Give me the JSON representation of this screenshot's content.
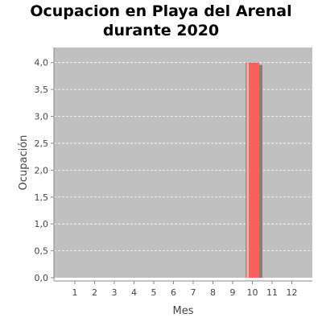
{
  "chart_data": {
    "type": "bar",
    "title_lines": [
      "Ocupacion en  Playa del Arenal",
      "durante 2020"
    ],
    "xlabel": "Mes",
    "ylabel": "Ocupación",
    "categories": [
      "1",
      "2",
      "3",
      "4",
      "5",
      "6",
      "7",
      "8",
      "9",
      "10",
      "11",
      "12"
    ],
    "values": [
      0,
      0,
      0,
      0,
      0,
      0,
      0,
      0,
      0,
      4,
      0,
      0
    ],
    "ylim": [
      0,
      4
    ],
    "yticks": [
      "0,0",
      "0,5",
      "1,0",
      "1,5",
      "2,0",
      "2,5",
      "3,0",
      "3,5",
      "4,0"
    ],
    "grid": true,
    "colors": {
      "plot_background": "#c0c0c0",
      "bar": "#ff5f5f",
      "bar_highlight": "#ffb4b4",
      "bar_shadow": "#808080",
      "gridline": "#ffffff",
      "axis": "#888888"
    }
  }
}
